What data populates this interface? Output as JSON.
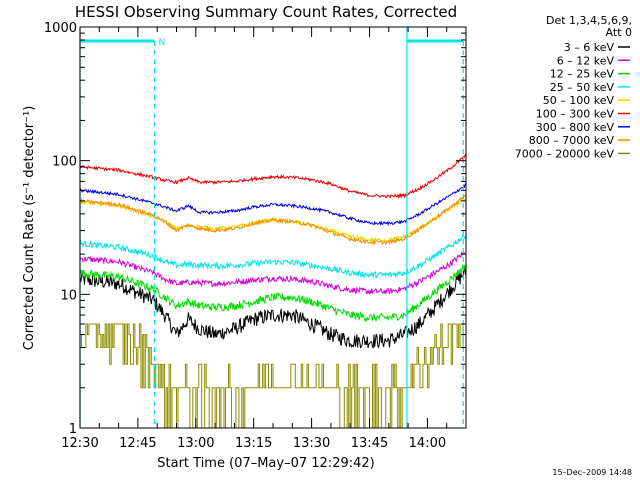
{
  "chart_data": {
    "type": "line",
    "title": "HESSI Observing Summary Count Rates, Corrected",
    "xlabel": "Start Time (07–May–07 12:29:42)",
    "ylabel": "Corrected Count Rate (s⁻¹ detector⁻¹)",
    "ylog": true,
    "ylim": [
      1,
      1000
    ],
    "xlim_minutes": [
      0,
      100
    ],
    "x_ticks": [
      {
        "label": "12:30",
        "minute": 0
      },
      {
        "label": "12:45",
        "minute": 15
      },
      {
        "label": "13:00",
        "minute": 30
      },
      {
        "label": "13:15",
        "minute": 45
      },
      {
        "label": "13:30",
        "minute": 60
      },
      {
        "label": "13:45",
        "minute": 75
      },
      {
        "label": "14:00",
        "minute": 90
      }
    ],
    "y_tick_labels": [
      {
        "label": "1",
        "value": 1
      },
      {
        "label": "10",
        "value": 10
      },
      {
        "label": "100",
        "value": 100
      },
      {
        "label": "1000",
        "value": 1000
      }
    ],
    "legend_header": [
      "Det 1,3,4,5,6,9,",
      "Att 0"
    ],
    "legend_position": "right",
    "annotations": {
      "night_marker": "N"
    },
    "flags": {
      "cyan_bars": [
        [
          0,
          19.3
        ],
        [
          84.7,
          99.3
        ]
      ],
      "dashed_lines": [
        19.3,
        99.3
      ],
      "solid_lines": [
        0,
        84.7
      ]
    },
    "time_points": [
      0,
      10,
      19,
      22,
      25,
      28,
      31,
      35,
      40,
      45,
      50,
      55,
      60,
      65,
      70,
      75,
      80,
      84,
      88,
      92,
      96,
      100
    ],
    "series": [
      {
        "name": "3 – 6 keV",
        "color": "#000000",
        "noise": 0.13,
        "values": [
          13,
          12,
          9,
          7,
          5,
          6.5,
          5.5,
          5,
          5.5,
          6.5,
          7,
          7,
          6,
          5,
          4.5,
          4.5,
          4.5,
          5,
          6,
          8,
          11,
          15
        ]
      },
      {
        "name": "6 – 12 keV",
        "color": "#d400d4",
        "noise": 0.05,
        "values": [
          18.5,
          17.5,
          14.5,
          13,
          12,
          12.3,
          12.2,
          12,
          12.3,
          12.8,
          13.2,
          13,
          12.5,
          11.5,
          10.8,
          10.5,
          10.5,
          11,
          12.5,
          14.5,
          17,
          21
        ]
      },
      {
        "name": "12 – 25 keV",
        "color": "#00dd00",
        "noise": 0.07,
        "values": [
          14.5,
          13.5,
          11,
          9.5,
          8.2,
          8.8,
          8.2,
          8,
          8.2,
          8.8,
          9.5,
          9.5,
          8.8,
          7.8,
          7,
          6.7,
          6.7,
          7,
          8.5,
          10.5,
          13,
          16.5
        ]
      },
      {
        "name": "25 – 50 keV",
        "color": "#00e5e5",
        "noise": 0.05,
        "values": [
          24,
          22.5,
          19.5,
          17.5,
          16.5,
          16.8,
          16.5,
          16.3,
          16.5,
          17,
          17.5,
          17.3,
          16.5,
          15.5,
          14.5,
          14,
          14,
          14.5,
          16.5,
          19.5,
          23,
          28
        ]
      },
      {
        "name": "50 – 100 keV",
        "color": "#dddd00",
        "noise": 0.03,
        "values": [
          49,
          46,
          38,
          35,
          31,
          33,
          32,
          31,
          32,
          34,
          36,
          35,
          33,
          30,
          27,
          25.5,
          25.5,
          27,
          31,
          37,
          44,
          52
        ]
      },
      {
        "name": "100 – 300 keV",
        "color": "#ee0000",
        "noise": 0.025,
        "values": [
          90,
          85,
          75,
          71,
          69,
          74,
          69,
          69,
          70,
          73,
          76,
          75,
          72,
          67,
          59,
          55,
          54,
          55,
          62,
          73,
          88,
          110
        ]
      },
      {
        "name": "300 – 800 keV",
        "color": "#0000ee",
        "noise": 0.025,
        "values": [
          60,
          56,
          48,
          45,
          42,
          46,
          41,
          41,
          42,
          45,
          47,
          46,
          44,
          41,
          37,
          34,
          34,
          35,
          40,
          47,
          55,
          66
        ]
      },
      {
        "name": "800 – 7000 keV",
        "color": "#ff8800",
        "noise": 0.03,
        "values": [
          50,
          47,
          39,
          35,
          30,
          33,
          31,
          30,
          31,
          34,
          36,
          35,
          33,
          29,
          26,
          24.5,
          24.5,
          26,
          31,
          37,
          45,
          55
        ]
      },
      {
        "name": "7000 – 20000 keV",
        "color": "#8b8b00",
        "noise": 0.0,
        "values": [
          5,
          5,
          3,
          2,
          2,
          1.8,
          1.7,
          1.7,
          1.8,
          2,
          2.4,
          2.4,
          2.2,
          1.9,
          1.8,
          1.8,
          2,
          2,
          3,
          4,
          5,
          6
        ]
      }
    ]
  },
  "footer": {
    "timestamp": "15–Dec–2009 14:48"
  }
}
